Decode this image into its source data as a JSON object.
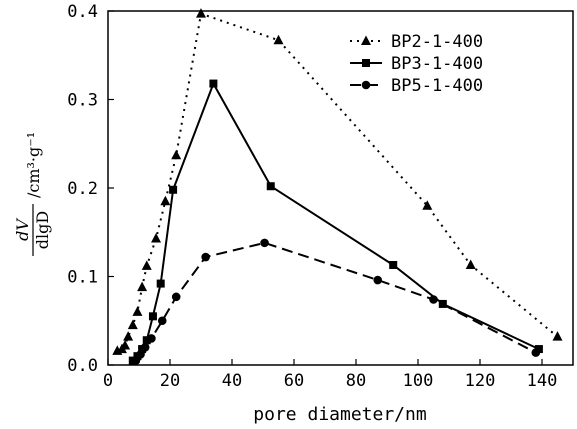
{
  "chart_data": {
    "type": "line",
    "xlabel": "pore diameter/nm",
    "ylabel": {
      "numerator": "dV",
      "denominator": "dlgD",
      "unit": "/cm³·g⁻¹"
    },
    "xlim": [
      0,
      150
    ],
    "ylim": [
      0,
      0.4
    ],
    "xticks": [
      "0",
      "20",
      "40",
      "60",
      "80",
      "100",
      "120",
      "140"
    ],
    "yticks": [
      "0.0",
      "0.1",
      "0.2",
      "0.3",
      "0.4"
    ],
    "legend_position": "top-right",
    "series": [
      {
        "name": "BP2-1-400",
        "marker": "triangle",
        "line": "dotted",
        "color": "#000000",
        "points": [
          [
            3,
            0.016
          ],
          [
            4.5,
            0.018
          ],
          [
            5.5,
            0.022
          ],
          [
            6.5,
            0.032
          ],
          [
            8,
            0.045
          ],
          [
            9.5,
            0.06
          ],
          [
            11,
            0.088
          ],
          [
            12.5,
            0.112
          ],
          [
            15.5,
            0.143
          ],
          [
            18.5,
            0.185
          ],
          [
            22,
            0.237
          ],
          [
            30,
            0.397
          ],
          [
            55,
            0.367
          ],
          [
            103,
            0.18
          ],
          [
            117,
            0.113
          ],
          [
            145,
            0.032
          ]
        ]
      },
      {
        "name": "BP3-1-400",
        "marker": "square",
        "line": "solid",
        "color": "#000000",
        "points": [
          [
            8,
            0.005
          ],
          [
            9.5,
            0.01
          ],
          [
            11,
            0.018
          ],
          [
            12.5,
            0.028
          ],
          [
            14.5,
            0.055
          ],
          [
            17,
            0.092
          ],
          [
            21,
            0.198
          ],
          [
            34,
            0.318
          ],
          [
            52.5,
            0.202
          ],
          [
            92,
            0.113
          ],
          [
            108,
            0.069
          ],
          [
            139,
            0.018
          ]
        ]
      },
      {
        "name": "BP5-1-400",
        "marker": "circle",
        "line": "dashed",
        "color": "#000000",
        "points": [
          [
            9,
            0.005
          ],
          [
            10.5,
            0.012
          ],
          [
            12,
            0.02
          ],
          [
            14,
            0.03
          ],
          [
            17.5,
            0.05
          ],
          [
            22,
            0.077
          ],
          [
            31.5,
            0.122
          ],
          [
            50.5,
            0.138
          ],
          [
            87,
            0.096
          ],
          [
            105,
            0.074
          ],
          [
            138,
            0.014
          ]
        ]
      }
    ]
  }
}
